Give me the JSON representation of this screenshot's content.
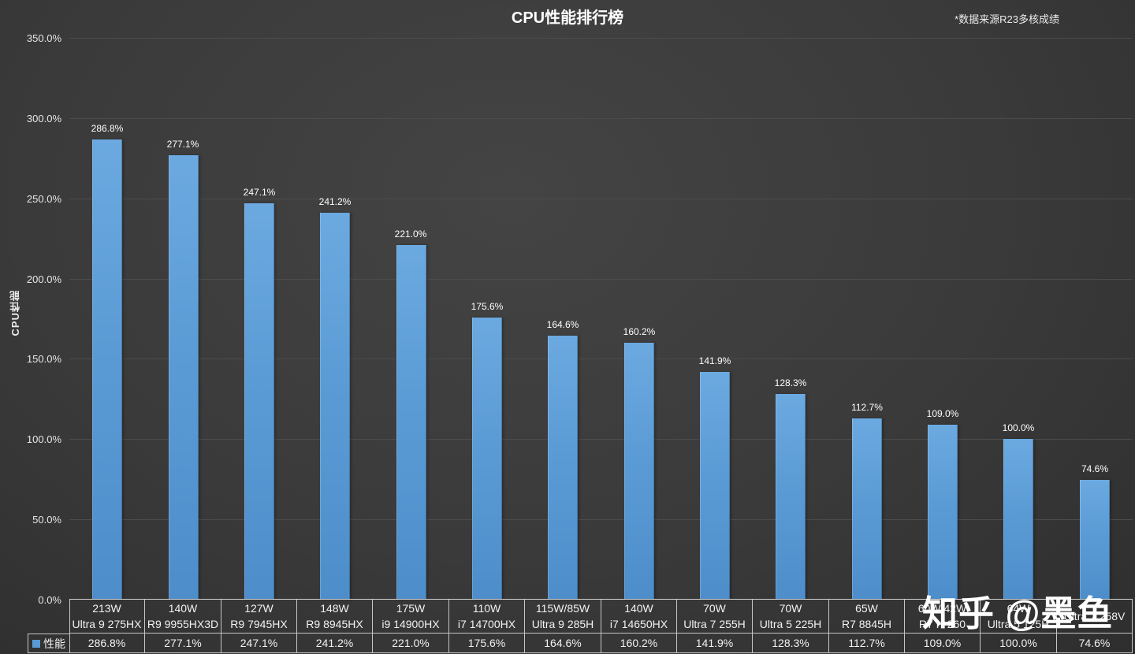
{
  "title": "CPU性能排行榜",
  "source_note": "*数据来源R23多核成绩",
  "watermark": "知乎 @墨鱼",
  "colors": {
    "bar": "#5B9BD5",
    "background": "#3a3a3a",
    "gridline": "#4c4c4c",
    "table_border": "#c6c6c6",
    "text": "#f2f2f2"
  },
  "chart_data": {
    "type": "bar",
    "title": "CPU性能排行榜",
    "xlabel": "",
    "ylabel": "CPU性能",
    "ylim": [
      0,
      350
    ],
    "y_tick_labels": [
      "0.0%",
      "50.0%",
      "100.0%",
      "150.0%",
      "200.0%",
      "250.0%",
      "300.0%",
      "350.0%"
    ],
    "grid": true,
    "legend": {
      "label": "性能",
      "position": "bottom-left"
    },
    "series_name": "性能",
    "items": [
      {
        "power": "213W",
        "model": "Ultra 9 275HX",
        "value": 286.8,
        "label": "286.8%"
      },
      {
        "power": "140W",
        "model": "R9 9955HX3D",
        "value": 277.1,
        "label": "277.1%"
      },
      {
        "power": "127W",
        "model": "R9 7945HX",
        "value": 247.1,
        "label": "247.1%"
      },
      {
        "power": "148W",
        "model": "R9 8945HX",
        "value": 241.2,
        "label": "241.2%"
      },
      {
        "power": "175W",
        "model": "i9 14900HX",
        "value": 221.0,
        "label": "221.0%"
      },
      {
        "power": "110W",
        "model": "i7 14700HX",
        "value": 175.6,
        "label": "175.6%"
      },
      {
        "power": "115W/85W",
        "model": "Ultra 9 285H",
        "value": 164.6,
        "label": "164.6%"
      },
      {
        "power": "140W",
        "model": "i7 14650HX",
        "value": 160.2,
        "label": "160.2%"
      },
      {
        "power": "70W",
        "model": "Ultra 7 255H",
        "value": 141.9,
        "label": "141.9%"
      },
      {
        "power": "70W",
        "model": "Ultra 5 225H",
        "value": 128.3,
        "label": "128.3%"
      },
      {
        "power": "65W",
        "model": "R7 8845H",
        "value": 112.7,
        "label": "112.7%"
      },
      {
        "power": "60W/42W",
        "model": "R7 H 260",
        "value": 109.0,
        "label": "109.0%"
      },
      {
        "power": "64W",
        "model": "Ultra 5 125H",
        "value": 100.0,
        "label": "100.0%"
      },
      {
        "power": "",
        "model": "Ultra 7 258V",
        "value": 74.6,
        "label": "74.6%"
      }
    ]
  }
}
